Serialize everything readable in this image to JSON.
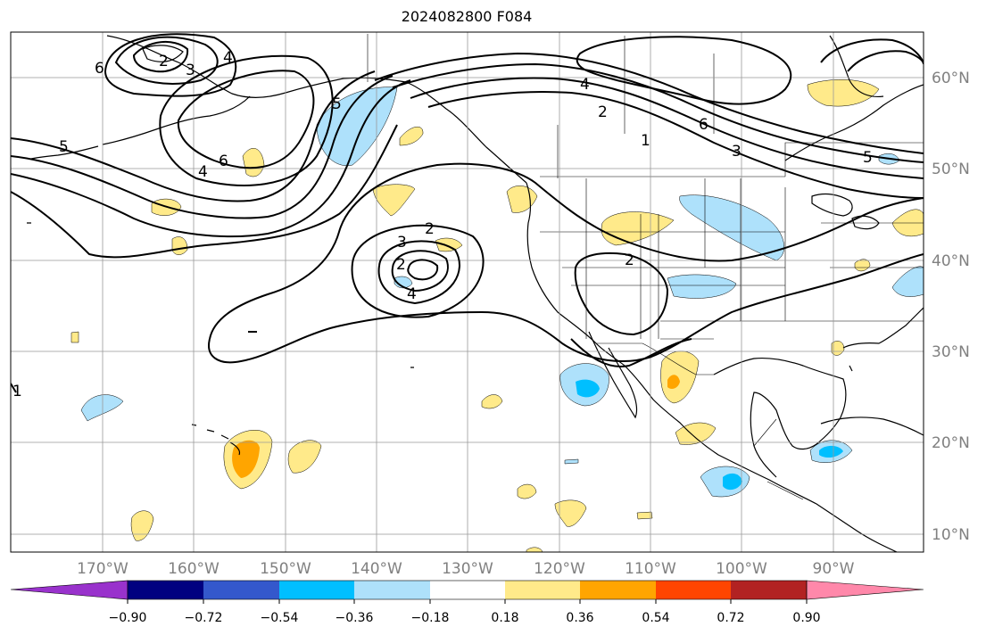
{
  "title": "2024082800 F084",
  "map": {
    "lat_labels": [
      "60°N",
      "50°N",
      "40°N",
      "30°N",
      "20°N",
      "10°N"
    ],
    "lon_labels": [
      "170°W",
      "160°W",
      "150°W",
      "140°W",
      "130°W",
      "120°W",
      "110°W",
      "100°W",
      "90°W"
    ],
    "contour_labels": [
      "6",
      "2",
      "3",
      "4",
      "5",
      "6",
      "4",
      "5",
      "4",
      "2",
      "1",
      "6",
      "3",
      "5",
      "2",
      "3",
      "2",
      "4",
      "2",
      "1"
    ]
  },
  "colorbar": {
    "ticks": [
      "−0.90",
      "−0.72",
      "−0.54",
      "−0.36",
      "−0.18",
      "0.18",
      "0.36",
      "0.54",
      "0.72",
      "0.90"
    ],
    "colors": [
      "#9932cc",
      "#000080",
      "#3458cc",
      "#00bfff",
      "#aee1fb",
      "#ffffff",
      "#ffea8a",
      "#ffa500",
      "#ff4500",
      "#b22222",
      "#ff88aa"
    ]
  }
}
